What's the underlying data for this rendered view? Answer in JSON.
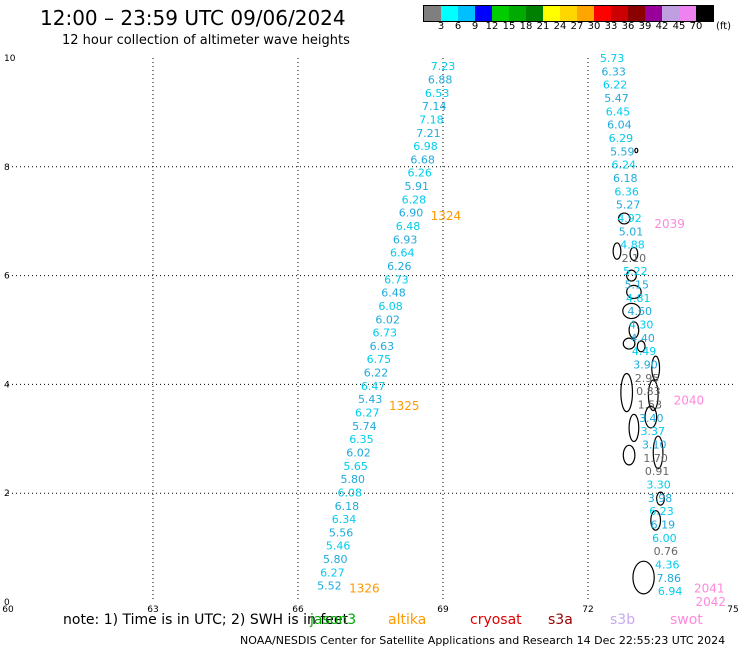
{
  "header": {
    "title": "12:00 – 23:59 UTC 09/06/2024",
    "subtitle": "12 hour collection of altimeter wave heights"
  },
  "colorbar": {
    "colors": [
      "#7f7f7f",
      "#00ffff",
      "#00bfff",
      "#0000ff",
      "#00cc00",
      "#00aa00",
      "#008000",
      "#ffff00",
      "#ffd700",
      "#ffa500",
      "#ff0000",
      "#cc0000",
      "#8b0000",
      "#990099",
      "#bf9fdf",
      "#ee82ee",
      "#000000"
    ],
    "labels": [
      "3",
      "6",
      "9",
      "12",
      "15",
      "18",
      "21",
      "24",
      "27",
      "30",
      "33",
      "36",
      "39",
      "42",
      "45",
      "70"
    ],
    "unit": "(ft)"
  },
  "map": {
    "lon_range": [
      60,
      75
    ],
    "lat_range": [
      0,
      10
    ],
    "x_ticks": [
      "60",
      "63",
      "66",
      "69",
      "72",
      "75"
    ],
    "y_ticks": [
      "0",
      "2",
      "4",
      "6",
      "8",
      "10"
    ],
    "grid": true,
    "wave_colors": {
      "cyan": "#00ccee",
      "blue": "#1eaadd",
      "gray": "#666666"
    },
    "tracks": [
      {
        "name": "track-1",
        "values": [
          "7.23",
          "6.88",
          "6.53",
          "7.14",
          "7.18",
          "7.21",
          "6.98",
          "6.68",
          "6.26",
          "5.91",
          "6.28",
          "6.90",
          "6.48",
          "6.93",
          "6.64",
          "6.26",
          "6.73",
          "6.48",
          "6.08",
          "6.02",
          "6.73",
          "6.63",
          "6.75",
          "6.22",
          "6.47",
          "5.43",
          "6.27",
          "5.74",
          "6.35",
          "6.02",
          "5.65",
          "5.80",
          "6.08",
          "6.18",
          "6.34",
          "5.56",
          "5.46",
          "5.80",
          "6.27",
          "5.52"
        ],
        "times": [
          {
            "label": "1324",
            "lat": 7.1
          },
          {
            "label": "1325",
            "lat": 3.6
          },
          {
            "label": "1326",
            "lat": 0.25
          }
        ],
        "time_color": "#ff9900"
      },
      {
        "name": "track-2",
        "values": [
          "5.73",
          "6.33",
          "6.22",
          "5.47",
          "6.45",
          "6.04",
          "6.29",
          "5.59",
          "6.24",
          "6.18",
          "6.36",
          "5.27",
          "4.92",
          "5.01",
          "4.88",
          "2.10",
          "5.22",
          "5.15",
          "4.81",
          "4.60",
          "4.30",
          "4.40",
          "4.49",
          "3.90",
          "2.95",
          "0.83",
          "1.53",
          "3.40",
          "3.37",
          "3.10",
          "1.70",
          "0.91",
          "3.30",
          "3.98",
          "6.23",
          "6.19",
          "6.00",
          "0.76",
          "4.36",
          "7.86",
          "6.94"
        ],
        "gray_values": [
          "2.10",
          "2.95",
          "0.83",
          "1.53",
          "1.70",
          "0.91",
          "0.76"
        ],
        "times": [
          {
            "label": "2039",
            "lat": 6.95
          },
          {
            "label": "2040",
            "lat": 3.7
          },
          {
            "label": "2041",
            "lat": 0.25
          },
          {
            "label": "2042",
            "lat": 0.0
          }
        ],
        "time_color": "#ff88dd"
      }
    ]
  },
  "footer": {
    "note": "note: 1) Time is in UTC; 2) SWH is in feet",
    "satellites": [
      {
        "name": "jason3",
        "color": "#00aa00"
      },
      {
        "name": "altika",
        "color": "#ff9900"
      },
      {
        "name": "cryosat",
        "color": "#dd0000"
      },
      {
        "name": "s3a",
        "color": "#990000"
      },
      {
        "name": "s3b",
        "color": "#c8a8f0"
      },
      {
        "name": "swot",
        "color": "#ff88dd"
      }
    ],
    "credit": "NOAA/NESDIS Center for Satellite Applications and Research    14 Dec 22:55:23 UTC 2024"
  }
}
